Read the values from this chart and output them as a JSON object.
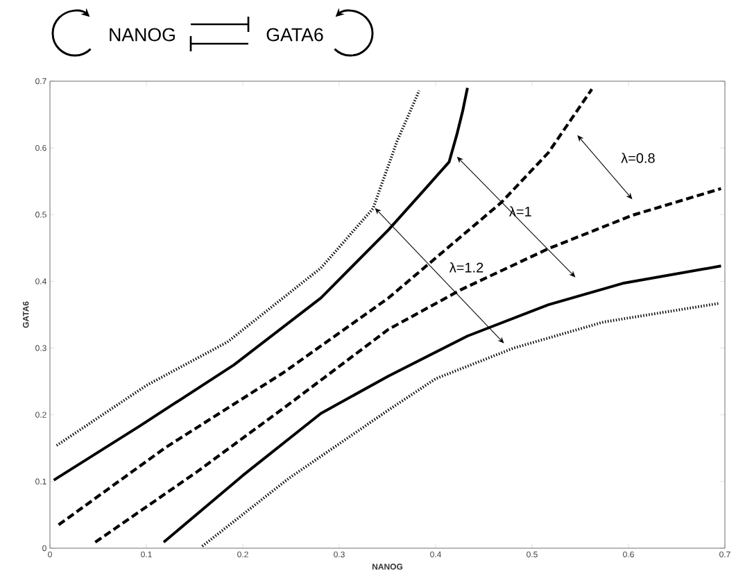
{
  "chart_data": {
    "type": "line",
    "xlabel": "NANOG",
    "ylabel": "GATA6",
    "xlim": [
      0,
      0.7
    ],
    "ylim": [
      0,
      0.7
    ],
    "xticks": [
      0,
      0.1,
      0.2,
      0.3,
      0.4,
      0.5,
      0.6,
      0.7
    ],
    "yticks": [
      0,
      0.1,
      0.2,
      0.3,
      0.4,
      0.5,
      0.6,
      0.7
    ],
    "series": [
      {
        "color": "#000000",
        "line_style": "dotted",
        "x": [
          0.007,
          0.1,
          0.184,
          0.281,
          0.335,
          0.36,
          0.383
        ],
        "values": [
          0.154,
          0.244,
          0.309,
          0.42,
          0.509,
          0.61,
          0.686
        ]
      },
      {
        "color": "#000000",
        "line_style": "solid",
        "x": [
          0.004,
          0.094,
          0.191,
          0.281,
          0.351,
          0.39,
          0.414,
          0.422,
          0.428,
          0.433
        ],
        "values": [
          0.102,
          0.184,
          0.275,
          0.375,
          0.477,
          0.54,
          0.579,
          0.62,
          0.655,
          0.69
        ]
      },
      {
        "color": "#000000",
        "line_style": "dashed",
        "x": [
          0.009,
          0.12,
          0.242,
          0.351,
          0.468,
          0.517,
          0.562
        ],
        "values": [
          0.035,
          0.151,
          0.263,
          0.375,
          0.518,
          0.593,
          0.688
        ]
      },
      {
        "color": "#000000",
        "line_style": "dashed",
        "x": [
          0.047,
          0.152,
          0.248,
          0.351,
          0.427,
          0.517,
          0.604,
          0.696
        ],
        "values": [
          0.009,
          0.114,
          0.216,
          0.328,
          0.388,
          0.449,
          0.499,
          0.539
        ]
      },
      {
        "color": "#000000",
        "line_style": "solid",
        "x": [
          0.118,
          0.2,
          0.281,
          0.351,
          0.433,
          0.517,
          0.594,
          0.696
        ],
        "values": [
          0.009,
          0.109,
          0.202,
          0.258,
          0.318,
          0.365,
          0.397,
          0.423
        ]
      },
      {
        "color": "#000000",
        "line_style": "dotted",
        "x": [
          0.158,
          0.248,
          0.351,
          0.4,
          0.481,
          0.574,
          0.694
        ],
        "values": [
          0.003,
          0.105,
          0.207,
          0.254,
          0.3,
          0.339,
          0.367
        ]
      }
    ],
    "annotations": [
      "NANOG",
      "GATA6",
      "λ=0.8",
      "λ=1",
      "λ=1.2"
    ]
  }
}
